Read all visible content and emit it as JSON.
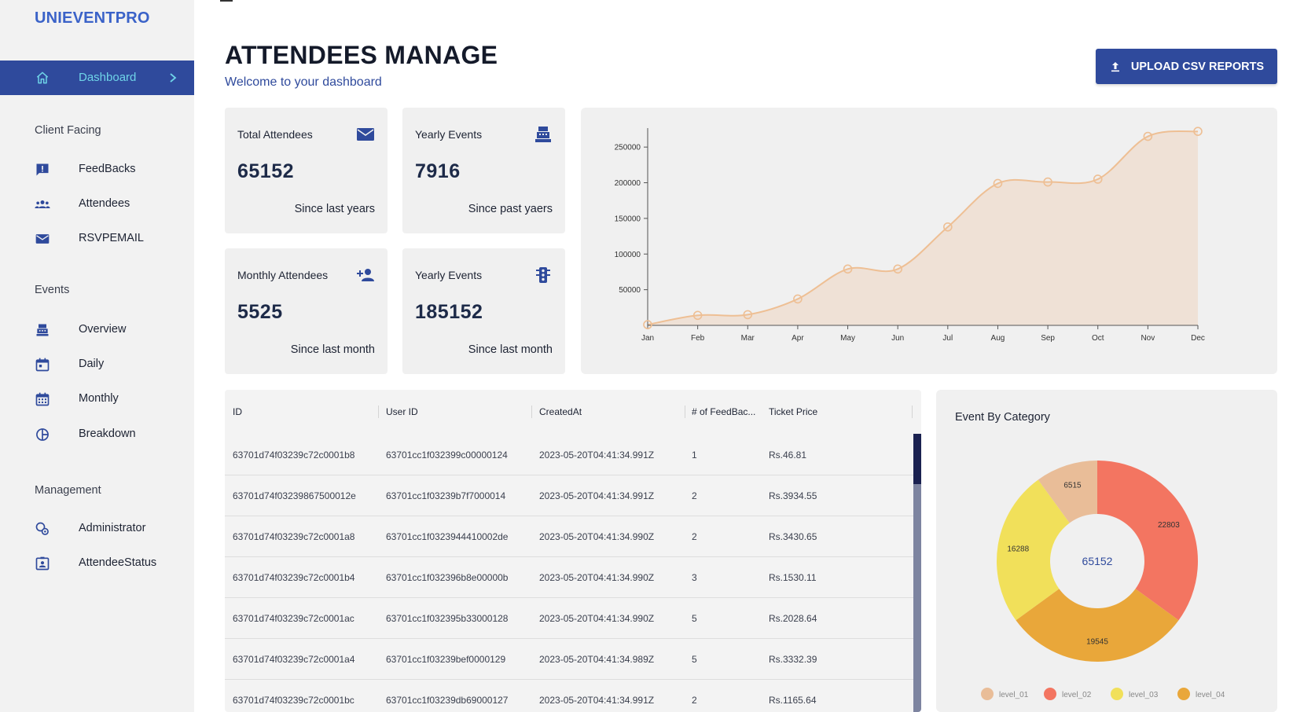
{
  "app": {
    "brand": "UNIEVENTPRO"
  },
  "sidebar": {
    "active": {
      "label": "Dashboard"
    },
    "sections": {
      "client": "Client Facing",
      "events": "Events",
      "management": "Management"
    },
    "items": [
      {
        "label": "FeedBacks",
        "icon": "feedback-icon"
      },
      {
        "label": "Attendees",
        "icon": "group-icon"
      },
      {
        "label": "RSVPEMAIL",
        "icon": "mail-icon"
      },
      {
        "label": "Overview",
        "icon": "cash-register-icon"
      },
      {
        "label": "Daily",
        "icon": "calendar-today-icon"
      },
      {
        "label": "Monthly",
        "icon": "calendar-month-icon"
      },
      {
        "label": "Breakdown",
        "icon": "pie-chart-icon"
      },
      {
        "label": "Administrator",
        "icon": "admin-icon"
      },
      {
        "label": "AttendeeStatus",
        "icon": "badge-icon"
      }
    ]
  },
  "header": {
    "title": "ATTENDEES MANAGE",
    "subtitle": "Welcome to your dashboard",
    "upload_label": "UPLOAD CSV REPORTS"
  },
  "stats": [
    {
      "label": "Total Attendees",
      "value": "65152",
      "note": "Since last years",
      "icon": "mail-icon"
    },
    {
      "label": "Yearly Events",
      "value": "7916",
      "note": "Since past yaers",
      "icon": "cash-register-icon"
    },
    {
      "label": "Monthly Attendees",
      "value": "5525",
      "note": "Since last month",
      "icon": "person-add-icon"
    },
    {
      "label": "Yearly Events",
      "value": "185152",
      "note": "Since last month",
      "icon": "traffic-light-icon"
    }
  ],
  "chart_data": [
    {
      "type": "area",
      "categories": [
        "Jan",
        "Feb",
        "Mar",
        "Apr",
        "May",
        "Jun",
        "Jul",
        "Aug",
        "Sep",
        "Oct",
        "Nov",
        "Dec"
      ],
      "values": [
        1000,
        14000,
        15000,
        37000,
        79000,
        79000,
        138000,
        199000,
        201000,
        205000,
        265000,
        272000
      ],
      "yticks": [
        50000,
        100000,
        150000,
        200000,
        250000
      ],
      "ylim": [
        0,
        270000
      ],
      "color": "#eebf94",
      "fill": "#efe1d6",
      "grid": false
    },
    {
      "type": "pie",
      "title": "Event By Category",
      "center_label": "65152",
      "slices": [
        {
          "label": "level_01",
          "value": 6515,
          "color": "#e9bd98"
        },
        {
          "label": "level_02",
          "value": 22803,
          "color": "#f37561"
        },
        {
          "label": "level_03",
          "value": 16288,
          "color": "#f1e05a"
        },
        {
          "label": "level_04",
          "value": 19545,
          "color": "#e9a73a"
        }
      ],
      "legend": "bottom"
    }
  ],
  "table": {
    "columns": [
      "ID",
      "User ID",
      "CreatedAt",
      "# of FeedBac...",
      "Ticket Price"
    ],
    "rows": [
      [
        "63701d74f03239c72c0001b8",
        "63701cc1f032399c00000124",
        "2023-05-20T04:41:34.991Z",
        "1",
        "Rs.46.81"
      ],
      [
        "63701d74f03239867500012e",
        "63701cc1f03239b7f7000014",
        "2023-05-20T04:41:34.991Z",
        "2",
        "Rs.3934.55"
      ],
      [
        "63701d74f03239c72c0001a8",
        "63701cc1f0323944410002de",
        "2023-05-20T04:41:34.990Z",
        "2",
        "Rs.3430.65"
      ],
      [
        "63701d74f03239c72c0001b4",
        "63701cc1f032396b8e00000b",
        "2023-05-20T04:41:34.990Z",
        "3",
        "Rs.1530.11"
      ],
      [
        "63701d74f03239c72c0001ac",
        "63701cc1f032395b33000128",
        "2023-05-20T04:41:34.990Z",
        "5",
        "Rs.2028.64"
      ],
      [
        "63701d74f03239c72c0001a4",
        "63701cc1f03239bef0000129",
        "2023-05-20T04:41:34.989Z",
        "5",
        "Rs.3332.39"
      ],
      [
        "63701d74f03239c72c0001bc",
        "63701cc1f03239db69000127",
        "2023-05-20T04:41:34.991Z",
        "2",
        "Rs.1165.64"
      ]
    ]
  }
}
